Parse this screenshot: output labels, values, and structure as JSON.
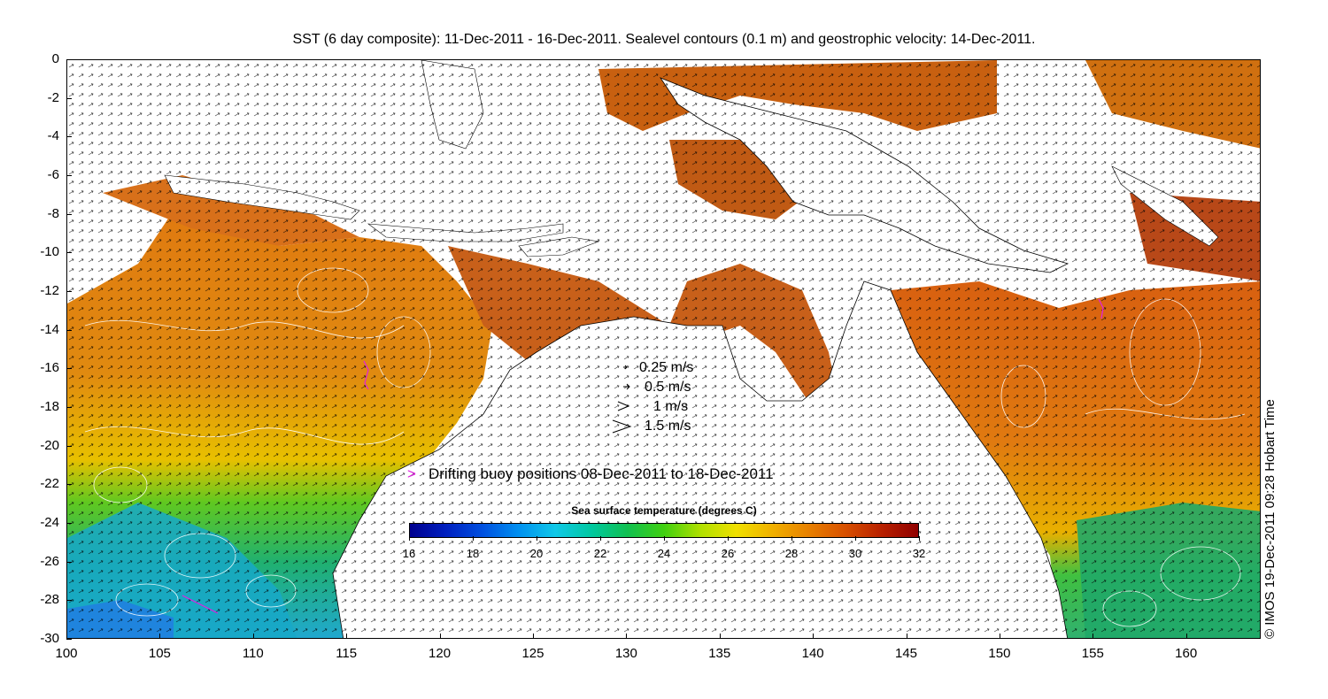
{
  "title": "SST (6 day composite): 11-Dec-2011 - 16-Dec-2011. Sealevel contours (0.1 m) and geostrophic velocity: 14-Dec-2011.",
  "credit": "© IMOS 19-Dec-2011 09:28 Hobart Time",
  "map": {
    "lon_range": [
      100,
      164
    ],
    "lat_range": [
      -30,
      0
    ],
    "x_ticks": [
      "100",
      "105",
      "110",
      "115",
      "120",
      "125",
      "130",
      "135",
      "140",
      "145",
      "150",
      "155",
      "160"
    ],
    "y_ticks": [
      "0",
      "-2",
      "-4",
      "-6",
      "-8",
      "-10",
      "-12",
      "-14",
      "-16",
      "-18",
      "-20",
      "-22",
      "-24",
      "-26",
      "-28",
      "-30"
    ],
    "land_color": "#ffffff",
    "no_data_color": "#ffffff",
    "contour_color": "#ffffff",
    "vector_color": "#000000"
  },
  "velocity_scale": {
    "entries": [
      "0.25 m/s",
      "0.5 m/s",
      "1 m/s",
      "1.5 m/s"
    ]
  },
  "buoy_legend": {
    "marker": ">",
    "marker_color": "#e020e0",
    "label": "Drifting buoy positions 08-Dec-2011 to 18-Dec-2011"
  },
  "colorbar": {
    "title": "Sea surface temperature (degrees C)",
    "min": 16,
    "max": 32,
    "tick_labels": [
      "16",
      "18",
      "20",
      "22",
      "24",
      "26",
      "28",
      "30",
      "32"
    ],
    "colormap": [
      "#00008f",
      "#0020c0",
      "#0050e0",
      "#0090f0",
      "#10c8e8",
      "#00c8a0",
      "#10c050",
      "#40d010",
      "#b0e000",
      "#f0e000",
      "#f0b000",
      "#e88000",
      "#d85000",
      "#b82000",
      "#900000"
    ]
  }
}
